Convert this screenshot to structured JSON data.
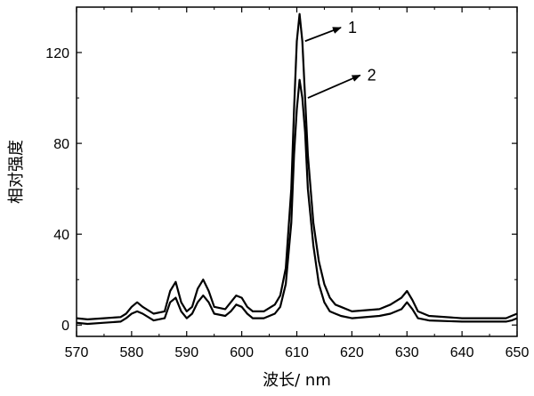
{
  "chart_data": {
    "type": "line",
    "xlabel": "波长/ nm",
    "ylabel": "相对强度",
    "xlim": [
      570,
      650
    ],
    "ylim": [
      -5,
      140
    ],
    "xticks": [
      570,
      580,
      590,
      600,
      610,
      620,
      630,
      640,
      650
    ],
    "xtick_labels": [
      "570",
      "580",
      "590",
      "600",
      "610",
      "620",
      "630",
      "640",
      "650"
    ],
    "yticks": [
      0,
      40,
      80,
      120
    ],
    "ytick_labels": [
      "0",
      "40",
      "80",
      "120"
    ],
    "grid": false,
    "legend": "none",
    "series": [
      {
        "name": "1",
        "color": "#000000",
        "x": [
          570,
          572,
          575,
          578,
          579,
          580,
          581,
          582,
          584,
          586,
          587,
          588,
          589,
          590,
          591,
          592,
          593,
          594,
          595,
          597,
          598,
          599,
          600,
          601,
          602,
          604,
          606,
          607,
          608,
          609,
          609.5,
          610,
          610.5,
          611,
          611.5,
          612,
          613,
          614,
          615,
          616,
          617,
          618,
          620,
          625,
          627,
          629,
          630,
          631,
          632,
          634,
          640,
          645,
          648,
          649,
          650
        ],
        "y": [
          3,
          2.5,
          3,
          3.5,
          5,
          8,
          10,
          8,
          5,
          6,
          15,
          19,
          10,
          6,
          8,
          16,
          20,
          15,
          8,
          7,
          10,
          13,
          12,
          8,
          6,
          6,
          9,
          13,
          25,
          60,
          95,
          125,
          137,
          125,
          100,
          75,
          45,
          28,
          18,
          12,
          9,
          8,
          6,
          7,
          9,
          12,
          15,
          11,
          6,
          4,
          3,
          3,
          3,
          4,
          5
        ]
      },
      {
        "name": "2",
        "color": "#000000",
        "x": [
          570,
          572,
          575,
          578,
          579,
          580,
          581,
          582,
          584,
          586,
          587,
          588,
          589,
          590,
          591,
          592,
          593,
          594,
          595,
          597,
          598,
          599,
          600,
          601,
          602,
          604,
          606,
          607,
          608,
          609,
          609.5,
          610,
          610.5,
          611,
          611.5,
          612,
          613,
          614,
          615,
          616,
          617,
          618,
          620,
          625,
          627,
          629,
          630,
          631,
          632,
          634,
          640,
          645,
          648,
          649,
          650
        ],
        "y": [
          1,
          0.5,
          1,
          1.5,
          3,
          5,
          6,
          5,
          2,
          3,
          10,
          12,
          6,
          3,
          5,
          10,
          13,
          10,
          5,
          4,
          6,
          9,
          8,
          5,
          3,
          3,
          5,
          8,
          18,
          45,
          75,
          95,
          108,
          100,
          85,
          60,
          35,
          18,
          10,
          6,
          5,
          4,
          3,
          4,
          5,
          7,
          10,
          7,
          3,
          2,
          1.5,
          1.5,
          1.5,
          2,
          3
        ]
      }
    ],
    "annotations": [
      {
        "text": "1",
        "arrow_from": [
          611.5,
          125
        ],
        "arrow_to": [
          618,
          131
        ]
      },
      {
        "text": "2",
        "arrow_from": [
          612,
          100
        ],
        "arrow_to": [
          621.5,
          110
        ]
      }
    ]
  }
}
